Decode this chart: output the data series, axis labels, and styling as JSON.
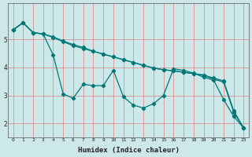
{
  "title": "",
  "xlabel": "Humidex (Indice chaleur)",
  "ylabel": "",
  "xlim": [
    -0.5,
    23.5
  ],
  "ylim": [
    1.5,
    6.3
  ],
  "yticks": [
    2,
    3,
    4,
    5
  ],
  "xticks": [
    0,
    1,
    2,
    3,
    4,
    5,
    6,
    7,
    8,
    9,
    10,
    11,
    12,
    13,
    14,
    15,
    16,
    17,
    18,
    19,
    20,
    21,
    22,
    23
  ],
  "bg_color": "#cce8e8",
  "grid_color": "#e08080",
  "line_color": "#007878",
  "line_width": 0.9,
  "marker": "D",
  "marker_size": 2.2,
  "series": [
    [
      5.35,
      5.6,
      5.25,
      5.2,
      4.45,
      3.05,
      2.9,
      3.4,
      3.35,
      3.35,
      3.9,
      2.95,
      2.65,
      2.55,
      2.7,
      3.0,
      3.95,
      3.9,
      3.8,
      3.65,
      3.55,
      2.85,
      2.25,
      1.83
    ],
    [
      5.35,
      5.6,
      5.25,
      5.2,
      5.1,
      4.95,
      4.82,
      4.72,
      4.58,
      4.48,
      4.38,
      4.28,
      4.18,
      4.08,
      3.98,
      3.92,
      3.88,
      3.83,
      3.78,
      3.73,
      3.62,
      3.52,
      2.45,
      1.83
    ],
    [
      5.35,
      5.6,
      5.25,
      5.2,
      5.08,
      4.92,
      4.78,
      4.68,
      4.58,
      4.48,
      4.38,
      4.28,
      4.18,
      4.08,
      3.98,
      3.92,
      3.88,
      3.83,
      3.78,
      3.73,
      3.58,
      3.48,
      2.4,
      1.83
    ]
  ]
}
